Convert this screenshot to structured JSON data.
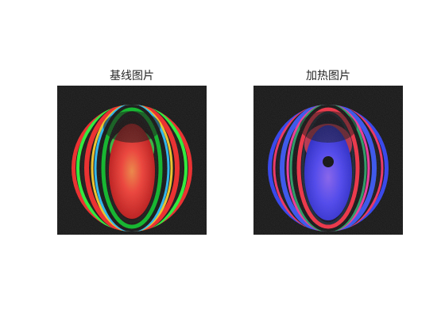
{
  "figure": {
    "panels": [
      {
        "title": "基线图片",
        "colors": {
          "outer": "#00ff44",
          "mid": "#ff1a1a",
          "center": "#ff3a30"
        }
      },
      {
        "title": "加热图片",
        "colors": {
          "outer": "#2a3cff",
          "mid": "#ff2a40",
          "center": "#4a40ff"
        }
      }
    ]
  }
}
